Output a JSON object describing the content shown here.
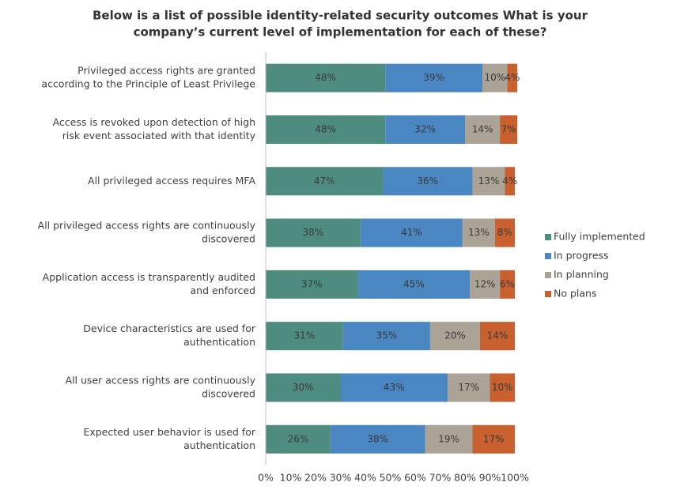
{
  "chart_data": {
    "type": "stacked_bar_horizontal",
    "title": [
      "Below is a list of possible identity-related security outcomes  What is your",
      "company’s current level of implementation for each of these?"
    ],
    "categories": [
      [
        "Privileged access rights are granted",
        "according to the Principle of Least Privilege"
      ],
      [
        "Access is revoked upon detection of high",
        "risk event associated with that identity"
      ],
      [
        "All privileged access requires MFA"
      ],
      [
        "All privileged access rights are continuously",
        "discovered"
      ],
      [
        "Application access is transparently audited",
        "and enforced"
      ],
      [
        "Device characteristics are used for",
        "authentication"
      ],
      [
        "All user access rights are continuously",
        "discovered"
      ],
      [
        "Expected user behavior is used for",
        "authentication"
      ]
    ],
    "series": [
      {
        "name": "Fully implemented",
        "color": "#4f8c80",
        "values": [
          48,
          48,
          47,
          38,
          37,
          31,
          30,
          26
        ],
        "value_labels": [
          "48%",
          "48%",
          "47%",
          "38%",
          "37%",
          "31%",
          "30%",
          "26%"
        ]
      },
      {
        "name": "In progress",
        "color": "#4a86c1",
        "values": [
          39,
          32,
          36,
          41,
          45,
          35,
          43,
          38
        ],
        "value_labels": [
          "39%",
          "32%",
          "36%",
          "41%",
          "45%",
          "35%",
          "43%",
          "38%"
        ]
      },
      {
        "name": "In planning",
        "color": "#aba395",
        "values": [
          10,
          14,
          13,
          13,
          12,
          20,
          17,
          19
        ],
        "value_labels": [
          "10%",
          "14%",
          "13%",
          "13%",
          "12%",
          "20%",
          "17%",
          "19%"
        ]
      },
      {
        "name": "No plans",
        "color": "#c8602f",
        "values": [
          4,
          7,
          4,
          8,
          6,
          14,
          10,
          17
        ],
        "value_labels": [
          "4%",
          "7%",
          "4%",
          "8%",
          "6%",
          "14%",
          "10%",
          "17%"
        ]
      }
    ],
    "xlim": [
      0,
      100
    ],
    "xticks": [
      {
        "value": 0,
        "label": "0%"
      },
      {
        "value": 10,
        "label": "10%"
      },
      {
        "value": 20,
        "label": "20%"
      },
      {
        "value": 30,
        "label": "30%"
      },
      {
        "value": 40,
        "label": "40%"
      },
      {
        "value": 50,
        "label": "50%"
      },
      {
        "value": 60,
        "label": "60%"
      },
      {
        "value": 70,
        "label": "70%"
      },
      {
        "value": 80,
        "label": "80%"
      },
      {
        "value": 90,
        "label": "90%"
      },
      {
        "value": 100,
        "label": "100%"
      }
    ],
    "legend": "right"
  }
}
